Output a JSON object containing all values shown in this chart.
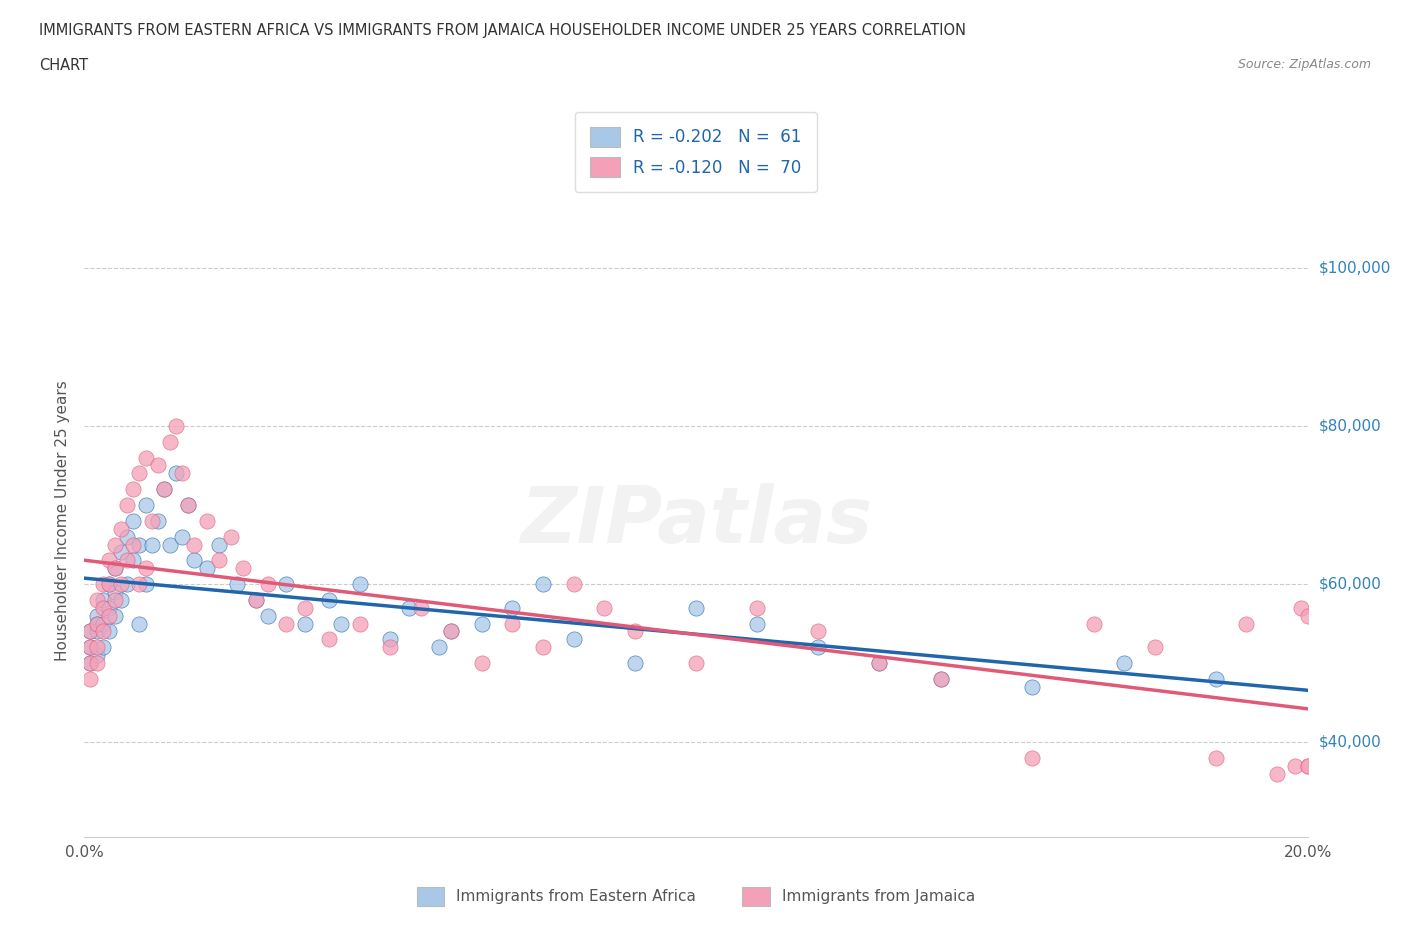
{
  "title_line1": "IMMIGRANTS FROM EASTERN AFRICA VS IMMIGRANTS FROM JAMAICA HOUSEHOLDER INCOME UNDER 25 YEARS CORRELATION",
  "title_line2": "CHART",
  "source": "Source: ZipAtlas.com",
  "ylabel": "Householder Income Under 25 years",
  "xmin": 0.0,
  "xmax": 0.2,
  "ymin": 28000,
  "ymax": 108000,
  "yticks": [
    40000,
    60000,
    80000,
    100000
  ],
  "ytick_labels": [
    "$40,000",
    "$60,000",
    "$80,000",
    "$100,000"
  ],
  "xticks": [
    0.0,
    0.05,
    0.1,
    0.15,
    0.2
  ],
  "xtick_labels": [
    "0.0%",
    "",
    "",
    "",
    "20.0%"
  ],
  "color_blue": "#a8c8e8",
  "color_pink": "#f4a0b8",
  "color_blue_line": "#2166ac",
  "color_pink_line": "#e05a78",
  "color_text_blue": "#3182bd",
  "series1_label": "Immigrants from Eastern Africa",
  "series2_label": "Immigrants from Jamaica",
  "blue_x": [
    0.001,
    0.001,
    0.001,
    0.002,
    0.002,
    0.002,
    0.002,
    0.003,
    0.003,
    0.003,
    0.004,
    0.004,
    0.004,
    0.005,
    0.005,
    0.005,
    0.006,
    0.006,
    0.007,
    0.007,
    0.008,
    0.008,
    0.009,
    0.009,
    0.01,
    0.01,
    0.011,
    0.012,
    0.013,
    0.014,
    0.015,
    0.016,
    0.017,
    0.018,
    0.02,
    0.022,
    0.025,
    0.028,
    0.03,
    0.033,
    0.036,
    0.04,
    0.042,
    0.045,
    0.05,
    0.053,
    0.058,
    0.06,
    0.065,
    0.07,
    0.075,
    0.08,
    0.09,
    0.1,
    0.11,
    0.12,
    0.13,
    0.14,
    0.155,
    0.17,
    0.185
  ],
  "blue_y": [
    54000,
    52000,
    50000,
    56000,
    54000,
    51000,
    55000,
    58000,
    55000,
    52000,
    60000,
    57000,
    54000,
    62000,
    59000,
    56000,
    64000,
    58000,
    66000,
    60000,
    68000,
    63000,
    65000,
    55000,
    70000,
    60000,
    65000,
    68000,
    72000,
    65000,
    74000,
    66000,
    70000,
    63000,
    62000,
    65000,
    60000,
    58000,
    56000,
    60000,
    55000,
    58000,
    55000,
    60000,
    53000,
    57000,
    52000,
    54000,
    55000,
    57000,
    60000,
    53000,
    50000,
    57000,
    55000,
    52000,
    50000,
    48000,
    47000,
    50000,
    48000
  ],
  "pink_x": [
    0.001,
    0.001,
    0.001,
    0.001,
    0.002,
    0.002,
    0.002,
    0.002,
    0.003,
    0.003,
    0.003,
    0.004,
    0.004,
    0.004,
    0.005,
    0.005,
    0.005,
    0.006,
    0.006,
    0.007,
    0.007,
    0.008,
    0.008,
    0.009,
    0.009,
    0.01,
    0.01,
    0.011,
    0.012,
    0.013,
    0.014,
    0.015,
    0.016,
    0.017,
    0.018,
    0.02,
    0.022,
    0.024,
    0.026,
    0.028,
    0.03,
    0.033,
    0.036,
    0.04,
    0.045,
    0.05,
    0.055,
    0.06,
    0.065,
    0.07,
    0.075,
    0.08,
    0.085,
    0.09,
    0.1,
    0.11,
    0.12,
    0.13,
    0.14,
    0.155,
    0.165,
    0.175,
    0.185,
    0.19,
    0.195,
    0.198,
    0.199,
    0.2,
    0.2,
    0.2
  ],
  "pink_y": [
    54000,
    52000,
    50000,
    48000,
    58000,
    55000,
    52000,
    50000,
    60000,
    57000,
    54000,
    63000,
    60000,
    56000,
    65000,
    62000,
    58000,
    67000,
    60000,
    70000,
    63000,
    72000,
    65000,
    74000,
    60000,
    76000,
    62000,
    68000,
    75000,
    72000,
    78000,
    80000,
    74000,
    70000,
    65000,
    68000,
    63000,
    66000,
    62000,
    58000,
    60000,
    55000,
    57000,
    53000,
    55000,
    52000,
    57000,
    54000,
    50000,
    55000,
    52000,
    60000,
    57000,
    54000,
    50000,
    57000,
    54000,
    50000,
    48000,
    38000,
    55000,
    52000,
    38000,
    55000,
    36000,
    37000,
    57000,
    37000,
    56000,
    37000
  ]
}
